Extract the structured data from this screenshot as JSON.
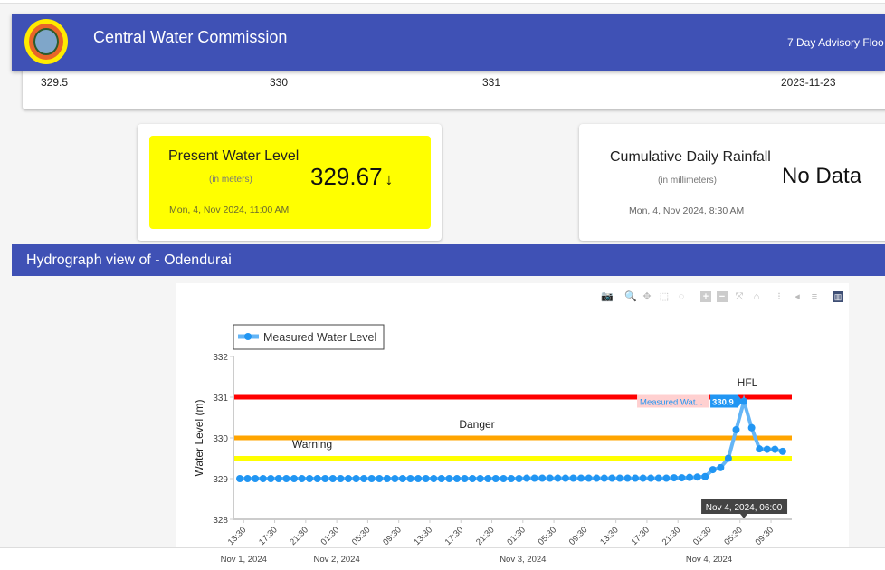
{
  "header": {
    "title": "Central Water Commission",
    "right_link": "7 Day Advisory Floo"
  },
  "levels_row": {
    "warning": "329.5",
    "danger": "330",
    "hfl": "331",
    "hfl_date": "2023-11-23"
  },
  "present_card": {
    "title": "Present Water Level",
    "unit": "(in meters)",
    "value": "329.67",
    "trend": "↓",
    "date": "Mon, 4, Nov 2024, 11:00 AM",
    "bg_color": "#ffff00"
  },
  "rainfall_card": {
    "title": "Cumulative Daily Rainfall",
    "unit": "(in millimeters)",
    "value": "No Data",
    "date": "Mon, 4, Nov 2024, 8:30 AM"
  },
  "section": {
    "title": "Hydrograph view of - Odendurai"
  },
  "modebar": [
    "camera-icon",
    "zoom-icon",
    "pan-icon",
    "box-select-icon",
    "lasso-icon",
    "zoom-in-icon",
    "zoom-out-icon",
    "autoscale-icon",
    "reset-axes-icon",
    "spike-lines-icon",
    "hover-closest-icon",
    "hover-compare-icon",
    "plotly-logo-icon"
  ],
  "chart_data": {
    "type": "line",
    "legend": [
      "Measured Water Level"
    ],
    "legend_placement": "top-left",
    "ylabel": "Water Level (m)",
    "ylim": [
      328,
      332
    ],
    "yticks": [
      "328",
      "329",
      "330",
      "331",
      "332"
    ],
    "xticks": [
      "13:30",
      "17:30",
      "21:30",
      "01:30",
      "05:30",
      "09:30",
      "13:30",
      "17:30",
      "21:30",
      "01:30",
      "05:30",
      "09:30",
      "13:30",
      "17:30",
      "21:30",
      "01:30",
      "05:30",
      "09:30"
    ],
    "xtick_dates": [
      "Nov 1, 2024",
      "",
      "",
      "Nov 2, 2024",
      "",
      "",
      "",
      "",
      "",
      "Nov 3, 2024",
      "",
      "",
      "",
      "",
      "",
      "Nov 4, 2024",
      "",
      ""
    ],
    "x_start": "Nov 1, 2024, 13:00",
    "x_end": "Nov 4, 2024, 11:00",
    "x_interval": "1 hour",
    "series": [
      {
        "name": "Measured Water Level",
        "color": "#2196f3",
        "values": [
          329,
          329,
          329,
          329,
          329,
          329,
          329,
          329,
          329,
          329,
          329,
          329,
          329,
          329,
          329,
          329,
          329,
          329,
          329,
          329,
          329,
          329,
          329,
          329,
          329,
          329,
          329,
          329,
          329,
          329,
          329,
          329,
          329,
          329,
          329,
          329,
          329,
          329.01,
          329.01,
          329.01,
          329.01,
          329.01,
          329.01,
          329.01,
          329.01,
          329.01,
          329.01,
          329.01,
          329.01,
          329.01,
          329.01,
          329.01,
          329.01,
          329.01,
          329.01,
          329.01,
          329.02,
          329.02,
          329.03,
          329.04,
          329.05,
          329.22,
          329.27,
          329.5,
          330.2,
          330.9,
          330.25,
          329.73,
          329.72,
          329.72,
          329.67
        ]
      }
    ],
    "thresholds": [
      {
        "label": "Warning",
        "value": 329.5,
        "color": "#ffff00"
      },
      {
        "label": "Danger",
        "value": 330,
        "color": "#ffa500"
      },
      {
        "label": "HFL",
        "value": 331,
        "color": "#ff0000"
      }
    ],
    "hover": {
      "series_label": "Measured Wat...",
      "value": "330.9",
      "x_label": "Nov 4, 2024, 06:00"
    }
  }
}
